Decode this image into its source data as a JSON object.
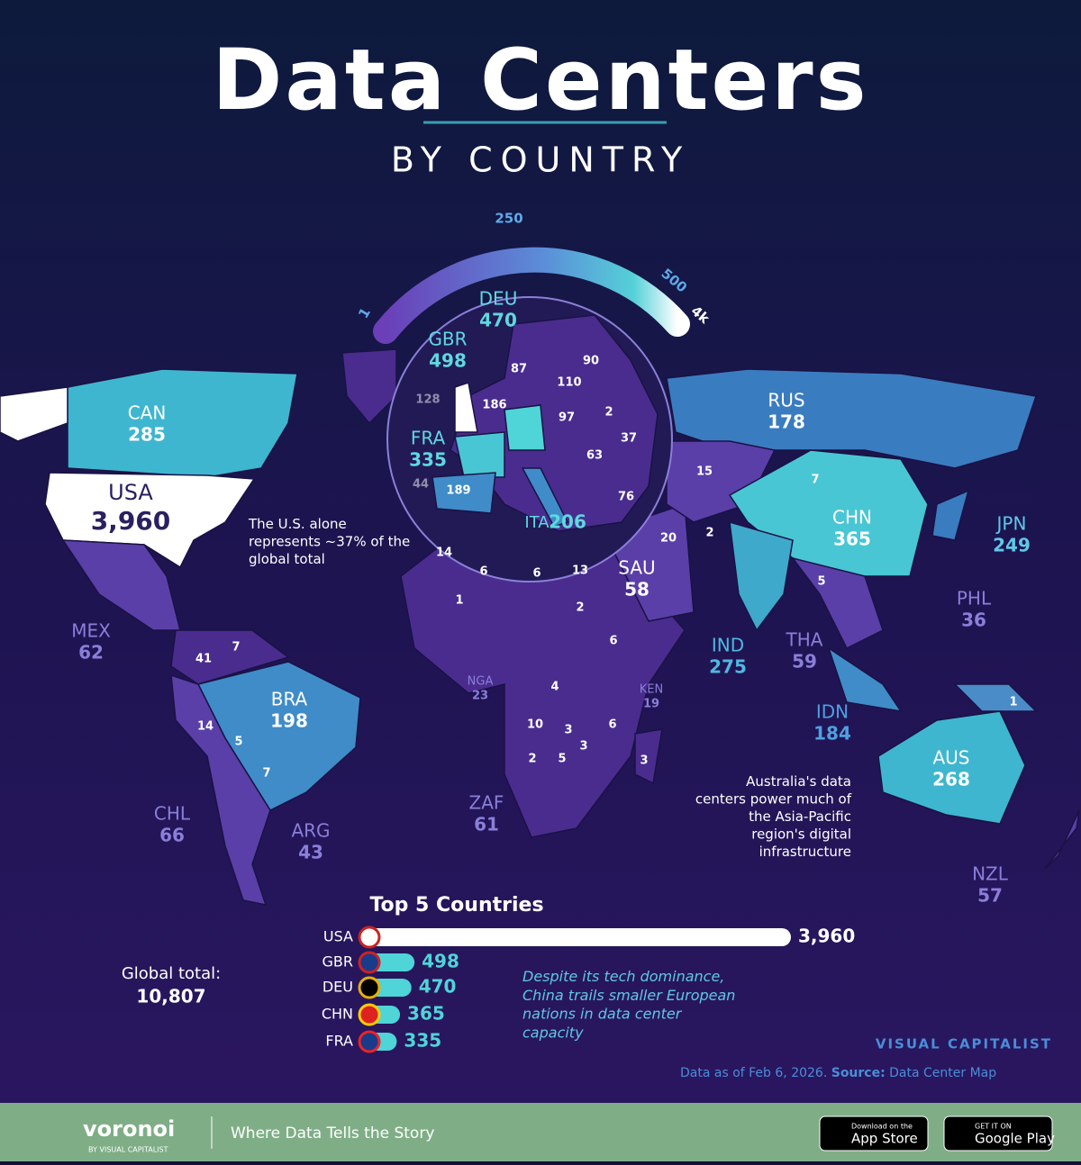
{
  "header": {
    "title": "Data Centers",
    "subtitle": "BY COUNTRY"
  },
  "scale": {
    "ticks": [
      1,
      250,
      500,
      {
        "value": 4000,
        "label": "4k"
      }
    ]
  },
  "countries": [
    {
      "code": "CAN",
      "value": 285
    },
    {
      "code": "USA",
      "value": 3960,
      "value_label": "3,960"
    },
    {
      "code": "RUS",
      "value": 178
    },
    {
      "code": "CHN",
      "value": 365
    },
    {
      "code": "JPN",
      "value": 249
    },
    {
      "code": "IND",
      "value": 275
    },
    {
      "code": "THA",
      "value": 59
    },
    {
      "code": "PHL",
      "value": 36
    },
    {
      "code": "IDN",
      "value": 184
    },
    {
      "code": "AUS",
      "value": 268
    },
    {
      "code": "NZL",
      "value": 57
    },
    {
      "code": "MEX",
      "value": 62
    },
    {
      "code": "BRA",
      "value": 198
    },
    {
      "code": "CHL",
      "value": 66
    },
    {
      "code": "ARG",
      "value": 43
    },
    {
      "code": "ZAF",
      "value": 61
    },
    {
      "code": "NGA",
      "value": 23
    },
    {
      "code": "KEN",
      "value": 19
    },
    {
      "code": "SAU",
      "value": 58
    },
    {
      "code": "DEU",
      "value": 470
    },
    {
      "code": "GBR",
      "value": 498
    },
    {
      "code": "FRA",
      "value": 335
    },
    {
      "code": "ITA",
      "value": 206
    }
  ],
  "unlabeled": [
    87,
    90,
    110,
    128,
    186,
    97,
    2,
    37,
    63,
    44,
    189,
    76,
    15,
    7,
    20,
    2,
    5,
    14,
    6,
    6,
    13,
    1,
    2,
    6,
    4,
    10,
    3,
    3,
    6,
    2,
    5,
    3,
    41,
    7,
    14,
    5,
    7,
    1
  ],
  "annotations": {
    "usa": "The U.S. alone represents ~37% of the global total",
    "australia": "Australia's data centers power much of the Asia-Pacific region's digital infrastructure",
    "china": "Despite its tech dominance, China trails smaller European nations in data center capacity",
    "global_label": "Global total:",
    "global_value": "10,807"
  },
  "top5": {
    "title": "Top 5 Countries",
    "categories": [
      "USA",
      "GBR",
      "DEU",
      "CHN",
      "FRA"
    ],
    "values": [
      3960,
      498,
      470,
      365,
      335
    ],
    "value_labels": [
      "3,960",
      "498",
      "470",
      "365",
      "335"
    ]
  },
  "brand": "VISUAL CAPITALIST",
  "source": {
    "date": "Data as of Feb 6, 2026.",
    "label": "Source:",
    "name": "Data Center Map"
  },
  "footer": {
    "logo": "voronoi",
    "logo_sub": "BY VISUAL CAPITALIST",
    "tagline": "Where Data Tells the Story",
    "appstore_small": "Download on the",
    "appstore": "App Store",
    "gplay_small": "GET IT ON",
    "gplay": "Google Play"
  }
}
